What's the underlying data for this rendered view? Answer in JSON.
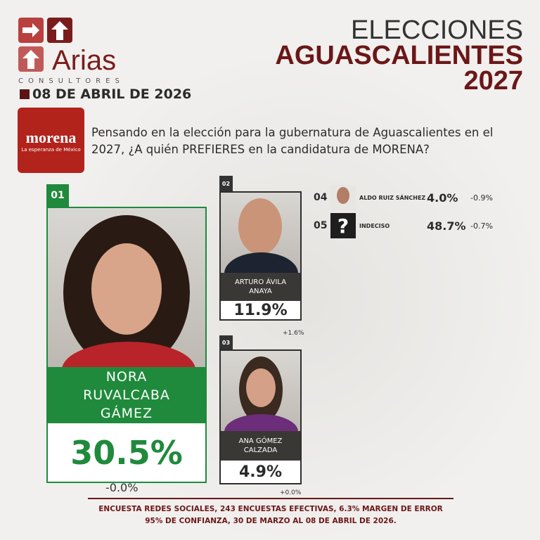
{
  "brand": {
    "name": "Arias",
    "tagline": "CONSULTORES",
    "date": "08 DE ABRIL DE 2026",
    "colors": {
      "primary": "#7a1c1c",
      "light": "#b8403f"
    }
  },
  "title": {
    "line1": "ELECCIONES",
    "line2": "AGUASCALIENTES",
    "line3": "2027"
  },
  "party": {
    "name": "morena",
    "slogan": "La esperanza de México",
    "color": "#b2231c"
  },
  "question": "Pensando en la elección para la gubernatura de Aguascalientes en el 2027,  ¿A quién PREFIERES en la candidatura de MORENA?",
  "candidates": [
    {
      "rank": "01",
      "name": "NORA RUVALCABA GÁMEZ",
      "value": "30.5%",
      "change": "-0.0%",
      "color": "#1f8a3c"
    },
    {
      "rank": "02",
      "name": "ARTURO ÁVILA ANAYA",
      "value": "11.9%",
      "change": "+1.6%"
    },
    {
      "rank": "03",
      "name": "ANA GÓMEZ CALZADA",
      "value": "4.9%",
      "change": "+0.0%"
    },
    {
      "rank": "04",
      "name": "ALDO RUIZ SÁNCHEZ",
      "value": "4.0%",
      "change": "-0.9%"
    },
    {
      "rank": "05",
      "name": "INDECISO",
      "value": "48.7%",
      "change": "-0.7%",
      "icon": "question-mark-icon"
    }
  ],
  "footer": {
    "line1": "ENCUESTA REDES SOCIALES, 243 ENCUESTAS EFECTIVAS, 6.3%  MARGEN DE ERROR",
    "line2": "95% DE CONFIANZA, 30 DE MARZO AL 08 DE ABRIL DE 2026."
  }
}
